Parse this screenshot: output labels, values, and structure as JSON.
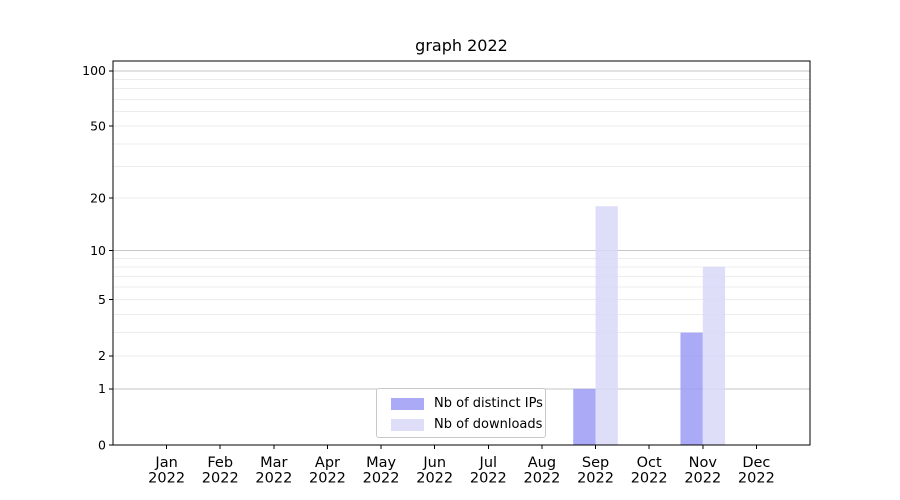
{
  "chart_data": {
    "type": "bar",
    "title": "graph 2022",
    "categories": [
      "Jan 2022",
      "Feb 2022",
      "Mar 2022",
      "Apr 2022",
      "May 2022",
      "Jun 2022",
      "Jul 2022",
      "Aug 2022",
      "Sep 2022",
      "Oct 2022",
      "Nov 2022",
      "Dec 2022"
    ],
    "series": [
      {
        "name": "Nb of distinct IPs",
        "color": "#9b9bf5",
        "alpha": 0.85,
        "values": [
          0,
          0,
          0,
          0,
          0,
          0,
          0,
          0,
          1,
          0,
          3,
          0
        ]
      },
      {
        "name": "Nb of downloads",
        "color": "#d8d8f8",
        "alpha": 0.85,
        "values": [
          0,
          0,
          0,
          0,
          0,
          0,
          0,
          0,
          18,
          0,
          8,
          0
        ]
      }
    ],
    "yscale": "log1p",
    "ylim": [
      0,
      113
    ],
    "yticks": [
      0,
      1,
      2,
      5,
      10,
      20,
      50,
      100
    ],
    "grid": {
      "major_values": [
        1,
        10,
        100
      ],
      "minor_values": [
        2,
        3,
        4,
        5,
        6,
        7,
        8,
        9,
        20,
        30,
        40,
        50,
        60,
        70,
        80,
        90
      ],
      "major_color": "#c6c6c6",
      "minor_color": "#ececec"
    },
    "axis_color": "#000000",
    "background_color": "#ffffff",
    "legend_position": "lower center"
  }
}
